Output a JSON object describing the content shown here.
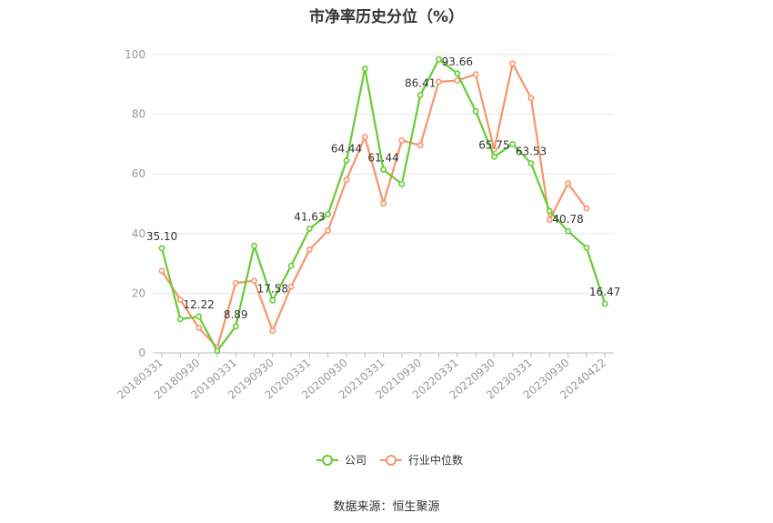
{
  "chart_data": {
    "type": "line",
    "title": "市净率历史分位（%）",
    "ylim": [
      0,
      100
    ],
    "yticks": [
      0,
      20,
      40,
      60,
      80,
      100
    ],
    "x_tick_labels": [
      "20180331",
      "20180930",
      "20190331",
      "20190930",
      "20200331",
      "20200930",
      "20210331",
      "20210930",
      "20220331",
      "20220930",
      "20230331",
      "20230930",
      "20240422"
    ],
    "n_points": 25,
    "grid": true,
    "legend_position": "bottom",
    "series": [
      {
        "name": "公司",
        "color": "#66cc33",
        "values": [
          35.1,
          11.3,
          12.22,
          0.7,
          8.89,
          35.9,
          17.58,
          29.2,
          41.63,
          46.5,
          64.44,
          95.3,
          61.44,
          56.6,
          86.41,
          98.4,
          93.66,
          81.0,
          65.75,
          70.0,
          63.53,
          47.6,
          40.78,
          35.3,
          16.47
        ],
        "labels": {
          "0": "35.10",
          "2": "12.22",
          "4": "8.89",
          "6": "17.58",
          "8": "41.63",
          "10": "64.44",
          "12": "61.44",
          "14": "86.41",
          "16": "93.66",
          "18": "65.75",
          "20": "63.53",
          "22": "40.78",
          "24": "16.47"
        }
      },
      {
        "name": "行业中位数",
        "color": "#f7956a",
        "values": [
          27.5,
          17.8,
          8.4,
          1.8,
          23.4,
          24.2,
          7.4,
          22.2,
          34.6,
          41.0,
          58.0,
          72.4,
          50.1,
          71.2,
          69.6,
          90.9,
          91.3,
          93.4,
          68.2,
          97.0,
          85.4,
          44.6,
          56.8,
          48.4,
          null
        ]
      }
    ]
  },
  "source": "数据来源：恒生聚源"
}
